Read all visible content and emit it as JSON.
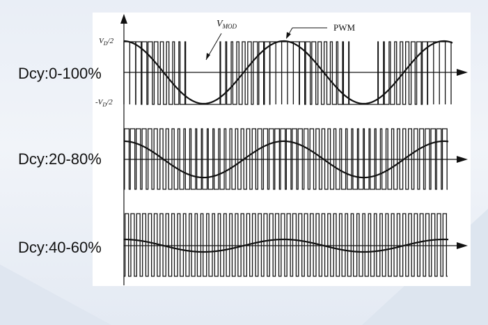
{
  "labels": {
    "vd_pos": "V",
    "vd_pos_sub": "D",
    "vd_pos_tail": "/2",
    "vd_neg": "-V",
    "vd_neg_sub": "D",
    "vd_neg_tail": "/2",
    "vmod": "V",
    "vmod_sub": "MOD",
    "pwm": "PWM"
  },
  "rows": [
    {
      "label": "Dcy:0-100%",
      "mod_amplitude": 1.0
    },
    {
      "label": "Dcy:20-80%",
      "mod_amplitude": 0.6
    },
    {
      "label": "Dcy:40-60%",
      "mod_amplitude": 0.2
    }
  ],
  "colors": {
    "background": "#e9eef6",
    "panel": "#ffffff",
    "ink": "#111111"
  }
}
